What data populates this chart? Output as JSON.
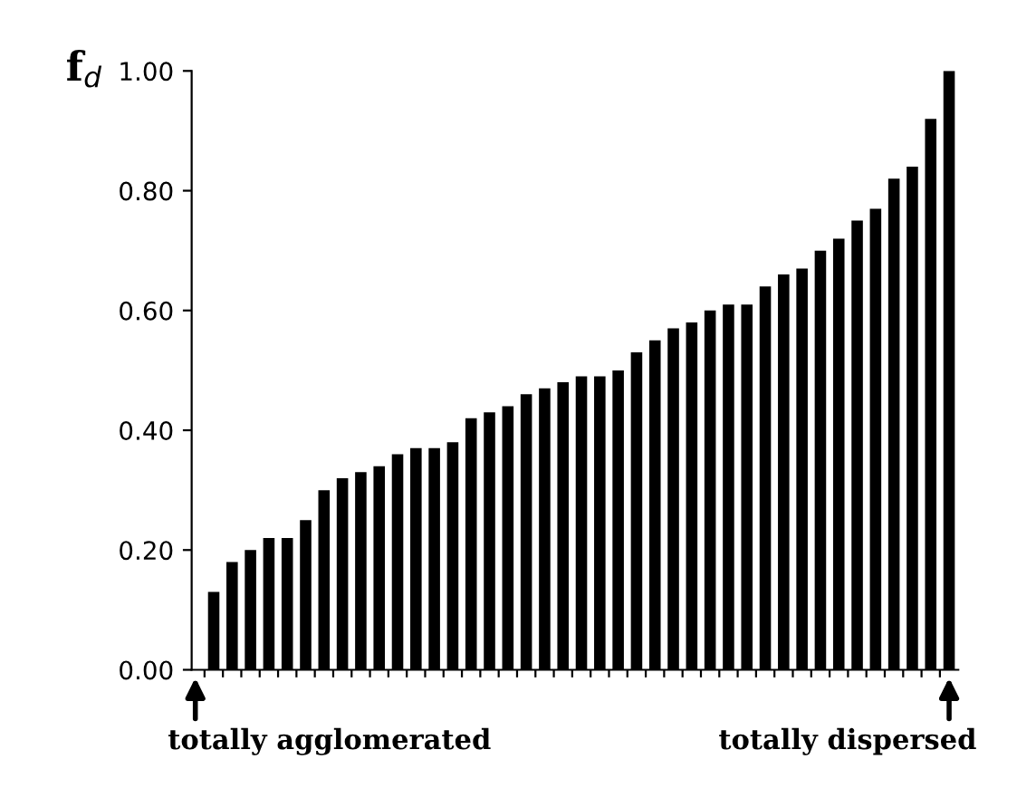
{
  "chart_data": {
    "type": "bar",
    "ylabel": "f$_{d}$",
    "categories": [
      null,
      null,
      null,
      null,
      null,
      null,
      null,
      null,
      null,
      null,
      null,
      null,
      null,
      null,
      null,
      null,
      null,
      null,
      null,
      null,
      null,
      null,
      null,
      null,
      null,
      null,
      null,
      null,
      null,
      null,
      null,
      null,
      null,
      null,
      null,
      null,
      null,
      null,
      null,
      null,
      null
    ],
    "values": [
      0.13,
      0.18,
      0.2,
      0.22,
      0.22,
      0.25,
      0.3,
      0.32,
      0.33,
      0.34,
      0.36,
      0.37,
      0.37,
      0.38,
      0.42,
      0.43,
      0.44,
      0.46,
      0.47,
      0.48,
      0.49,
      0.49,
      0.5,
      0.53,
      0.55,
      0.57,
      0.58,
      0.6,
      0.61,
      0.61,
      0.64,
      0.66,
      0.67,
      0.7,
      0.72,
      0.75,
      0.77,
      0.82,
      0.84,
      0.92,
      1.0
    ],
    "color": "#000000",
    "ylim": [
      0,
      1
    ],
    "yticks": [
      {
        "value": 0,
        "label": "0.00"
      },
      {
        "value": 0.2,
        "label": "0.20"
      },
      {
        "value": 0.4,
        "label": "0.40"
      },
      {
        "value": 0.6,
        "label": "0.60"
      },
      {
        "value": 0.8,
        "label": "0.80"
      },
      {
        "value": 1.0,
        "label": "1.00"
      }
    ],
    "annotations": [
      "totally agglomerated",
      "totally dispersed"
    ],
    "grid": false,
    "legend": false
  }
}
